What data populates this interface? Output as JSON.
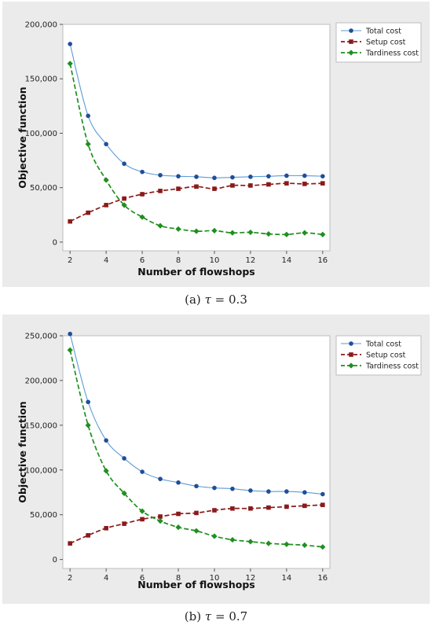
{
  "captions": [
    {
      "label": "(a)",
      "symbol": "τ",
      "eq": "=",
      "value": "0.3"
    },
    {
      "label": "(b)",
      "symbol": "τ",
      "eq": "=",
      "value": "0.7"
    }
  ],
  "chart_data": [
    {
      "type": "line",
      "xlabel": "Number of flowshops",
      "ylabel": "Objective function",
      "xlim": [
        1.6,
        16.4
      ],
      "ylim": [
        -8000,
        200000
      ],
      "xticks": [
        2,
        4,
        6,
        8,
        10,
        12,
        14,
        16
      ],
      "yticks": [
        0,
        50000,
        100000,
        150000,
        200000
      ],
      "yticklabels": [
        "0",
        "50,000",
        "100,000",
        "150,000",
        "200,000"
      ],
      "legend_position": "top-right",
      "x": [
        2,
        3,
        4,
        5,
        6,
        7,
        8,
        9,
        10,
        11,
        12,
        13,
        14,
        15,
        16
      ],
      "series": [
        {
          "name": "Total cost",
          "style": "solid",
          "marker": "circle",
          "color": "#5b9bd5",
          "marker_color": "#1f4e9a",
          "values": [
            182000,
            116000,
            90000,
            72000,
            64500,
            61500,
            60500,
            60000,
            59000,
            59500,
            60000,
            60500,
            61000,
            61000,
            60500
          ]
        },
        {
          "name": "Setup cost",
          "style": "dashed",
          "marker": "square",
          "color": "#8b1a1a",
          "marker_color": "#8b1a1a",
          "values": [
            19000,
            27000,
            34000,
            40000,
            44000,
            47000,
            49000,
            51000,
            49000,
            52000,
            52000,
            53000,
            54000,
            53500,
            54000
          ]
        },
        {
          "name": "Tardiness cost",
          "style": "dashed",
          "marker": "diamond",
          "color": "#1f8f1f",
          "marker_color": "#1f8f1f",
          "values": [
            164000,
            90000,
            57000,
            34000,
            23000,
            15000,
            12000,
            10000,
            10500,
            8500,
            9000,
            7500,
            7000,
            8500,
            7000
          ]
        }
      ]
    },
    {
      "type": "line",
      "xlabel": "Number of flowshops",
      "ylabel": "Objective function",
      "xlim": [
        1.6,
        16.4
      ],
      "ylim": [
        -10000,
        250000
      ],
      "xticks": [
        2,
        4,
        6,
        8,
        10,
        12,
        14,
        16
      ],
      "yticks": [
        0,
        50000,
        100000,
        150000,
        200000,
        250000
      ],
      "yticklabels": [
        "0",
        "50,000",
        "100,000",
        "150,000",
        "200,000",
        "250,000"
      ],
      "legend_position": "top-right",
      "x": [
        2,
        3,
        4,
        5,
        6,
        7,
        8,
        9,
        10,
        11,
        12,
        13,
        14,
        15,
        16
      ],
      "series": [
        {
          "name": "Total cost",
          "style": "solid",
          "marker": "circle",
          "color": "#5b9bd5",
          "marker_color": "#1f4e9a",
          "values": [
            252000,
            176000,
            133000,
            113000,
            98000,
            90000,
            86000,
            82000,
            80000,
            79000,
            77000,
            76000,
            76000,
            75000,
            73000
          ]
        },
        {
          "name": "Setup cost",
          "style": "dashed",
          "marker": "square",
          "color": "#8b1a1a",
          "marker_color": "#8b1a1a",
          "values": [
            18000,
            27000,
            35000,
            40000,
            45000,
            48000,
            51000,
            52000,
            55000,
            57000,
            57000,
            58000,
            59000,
            60000,
            61000
          ]
        },
        {
          "name": "Tardiness cost",
          "style": "dashed",
          "marker": "diamond",
          "color": "#1f8f1f",
          "marker_color": "#1f8f1f",
          "values": [
            234000,
            150000,
            99000,
            74000,
            54000,
            43000,
            36000,
            32000,
            26000,
            22000,
            20000,
            18000,
            17000,
            16000,
            14000
          ]
        }
      ]
    }
  ]
}
